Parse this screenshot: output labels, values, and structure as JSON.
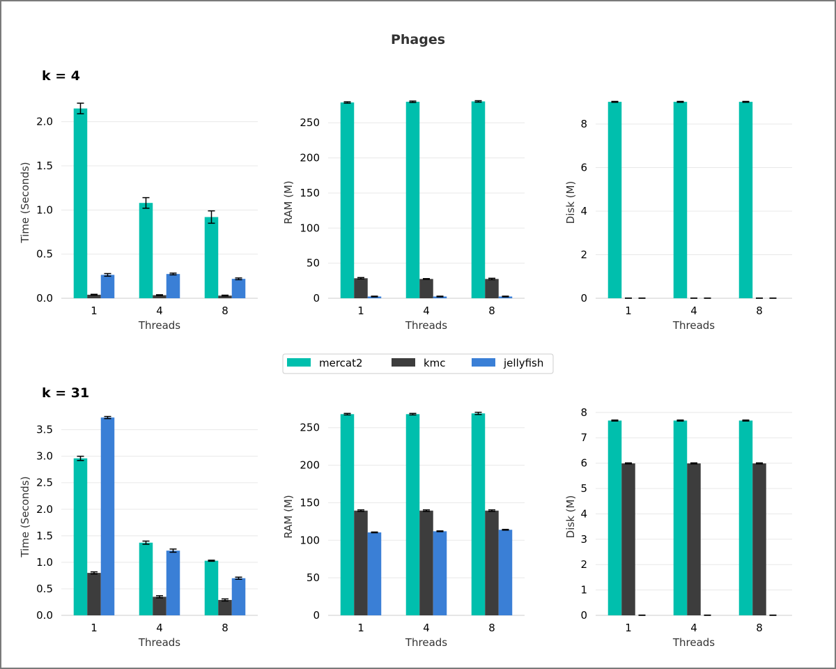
{
  "figure": {
    "title": "Phages",
    "row_labels": [
      "k = 4",
      "k = 31"
    ]
  },
  "legend": {
    "placement": "center",
    "items": [
      {
        "name": "mercat2",
        "color": "#00bfad"
      },
      {
        "name": "kmc",
        "color": "#3d3d3d"
      },
      {
        "name": "jellyfish",
        "color": "#3a7fd6"
      }
    ]
  },
  "chart_data": [
    {
      "type": "bar",
      "row": "k = 4",
      "xlabel": "Threads",
      "ylabel": "Time (Seconds)",
      "categories": [
        "1",
        "4",
        "8"
      ],
      "ylim": [
        0,
        2.25
      ],
      "yticks": [
        0.0,
        0.5,
        1.0,
        1.5,
        2.0
      ],
      "tick_decimals": 1,
      "grid": true,
      "series": [
        {
          "name": "mercat2",
          "values": [
            2.15,
            1.08,
            0.92
          ],
          "errors": [
            0.06,
            0.06,
            0.07
          ]
        },
        {
          "name": "kmc",
          "values": [
            0.04,
            0.035,
            0.03
          ],
          "errors": [
            0.005,
            0.005,
            0.005
          ]
        },
        {
          "name": "jellyfish",
          "values": [
            0.265,
            0.275,
            0.22
          ],
          "errors": [
            0.015,
            0.01,
            0.01
          ]
        }
      ]
    },
    {
      "type": "bar",
      "row": "k = 4",
      "xlabel": "Threads",
      "ylabel": "RAM (M)",
      "categories": [
        "1",
        "4",
        "8"
      ],
      "ylim": [
        0,
        283
      ],
      "yticks": [
        0,
        50,
        100,
        150,
        200,
        250
      ],
      "tick_decimals": 0,
      "grid": true,
      "series": [
        {
          "name": "mercat2",
          "values": [
            279,
            280,
            280.5
          ],
          "errors": [
            1,
            1,
            1
          ]
        },
        {
          "name": "kmc",
          "values": [
            28.5,
            27.5,
            27.5
          ],
          "errors": [
            1,
            0.5,
            1
          ]
        },
        {
          "name": "jellyfish",
          "values": [
            2.5,
            2.5,
            2.5
          ],
          "errors": [
            0.5,
            0.5,
            0.5
          ]
        }
      ]
    },
    {
      "type": "bar",
      "row": "k = 4",
      "xlabel": "Threads",
      "ylabel": "Disk (M)",
      "categories": [
        "1",
        "4",
        "8"
      ],
      "ylim": [
        0,
        9.12
      ],
      "yticks": [
        0,
        2,
        4,
        6,
        8
      ],
      "tick_decimals": 0,
      "grid": true,
      "series": [
        {
          "name": "mercat2",
          "values": [
            9.02,
            9.02,
            9.02
          ],
          "errors": [
            0.02,
            0.02,
            0.02
          ]
        },
        {
          "name": "kmc",
          "values": [
            0.0,
            0.0,
            0.0
          ],
          "errors": [
            0.01,
            0.01,
            0.01
          ]
        },
        {
          "name": "jellyfish",
          "values": [
            0.0,
            0.0,
            0.0
          ],
          "errors": [
            0.01,
            0.01,
            0.01
          ]
        }
      ]
    },
    {
      "type": "bar",
      "row": "k = 31",
      "xlabel": "Threads",
      "ylabel": "Time (Seconds)",
      "categories": [
        "1",
        "4",
        "8"
      ],
      "ylim": [
        0,
        3.85
      ],
      "yticks": [
        0.0,
        0.5,
        1.0,
        1.5,
        2.0,
        2.5,
        3.0,
        3.5
      ],
      "tick_decimals": 1,
      "grid": true,
      "series": [
        {
          "name": "mercat2",
          "values": [
            2.96,
            1.37,
            1.03
          ],
          "errors": [
            0.04,
            0.03,
            0.01
          ]
        },
        {
          "name": "kmc",
          "values": [
            0.8,
            0.35,
            0.29
          ],
          "errors": [
            0.02,
            0.02,
            0.02
          ]
        },
        {
          "name": "jellyfish",
          "values": [
            3.73,
            1.22,
            0.7
          ],
          "errors": [
            0.02,
            0.03,
            0.02
          ]
        }
      ]
    },
    {
      "type": "bar",
      "row": "k = 31",
      "xlabel": "Threads",
      "ylabel": "RAM (M)",
      "categories": [
        "1",
        "4",
        "8"
      ],
      "ylim": [
        0,
        272
      ],
      "yticks": [
        0,
        50,
        100,
        150,
        200,
        250
      ],
      "tick_decimals": 0,
      "grid": true,
      "series": [
        {
          "name": "mercat2",
          "values": [
            268,
            268,
            269
          ],
          "errors": [
            1,
            1,
            1.5
          ]
        },
        {
          "name": "kmc",
          "values": [
            139.5,
            139.5,
            139.5
          ],
          "errors": [
            1,
            1,
            1
          ]
        },
        {
          "name": "jellyfish",
          "values": [
            110.5,
            112,
            114
          ],
          "errors": [
            0.5,
            0.5,
            0.5
          ]
        }
      ]
    },
    {
      "type": "bar",
      "row": "k = 31",
      "xlabel": "Threads",
      "ylabel": "Disk (M)",
      "categories": [
        "1",
        "4",
        "8"
      ],
      "ylim": [
        0,
        8.05
      ],
      "yticks": [
        0,
        1,
        2,
        3,
        4,
        5,
        6,
        7,
        8
      ],
      "tick_decimals": 0,
      "grid": true,
      "series": [
        {
          "name": "mercat2",
          "values": [
            7.68,
            7.68,
            7.68
          ],
          "errors": [
            0.02,
            0.02,
            0.02
          ]
        },
        {
          "name": "kmc",
          "values": [
            5.99,
            5.99,
            5.99
          ],
          "errors": [
            0.02,
            0.02,
            0.02
          ]
        },
        {
          "name": "jellyfish",
          "values": [
            0.0,
            0.0,
            0.0
          ],
          "errors": [
            0.01,
            0.01,
            0.01
          ]
        }
      ]
    }
  ]
}
